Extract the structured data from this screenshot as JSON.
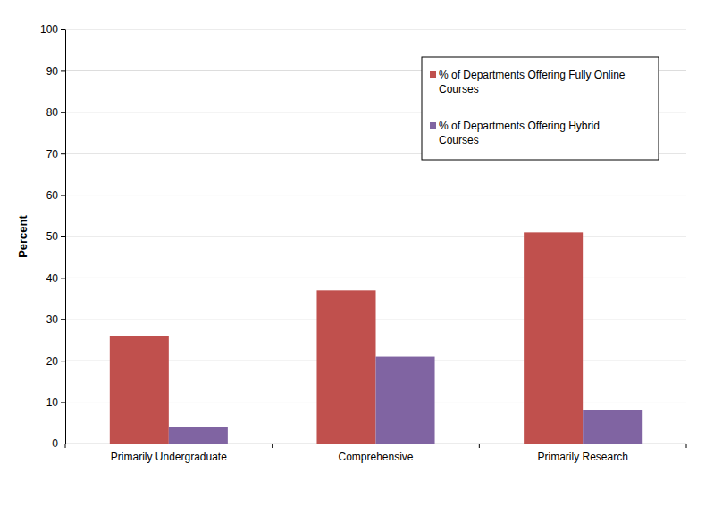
{
  "chart_data": {
    "type": "bar",
    "y_label": "Percent",
    "categories": [
      "Primarily Undergraduate",
      "Comprehensive",
      "Primarily Research"
    ],
    "series": [
      {
        "name": "% of Departments Offering Fully Online Courses",
        "color": "#c0504d",
        "values": [
          26,
          37,
          51
        ]
      },
      {
        "name": "% of Departments Offering Hybrid Courses",
        "color": "#8064a2",
        "values": [
          4,
          21,
          8
        ]
      }
    ],
    "ylim": [
      0,
      100
    ],
    "yticks": [
      0,
      10,
      20,
      30,
      40,
      50,
      60,
      70,
      80,
      90,
      100
    ],
    "grid": true,
    "legend": "upper right"
  }
}
